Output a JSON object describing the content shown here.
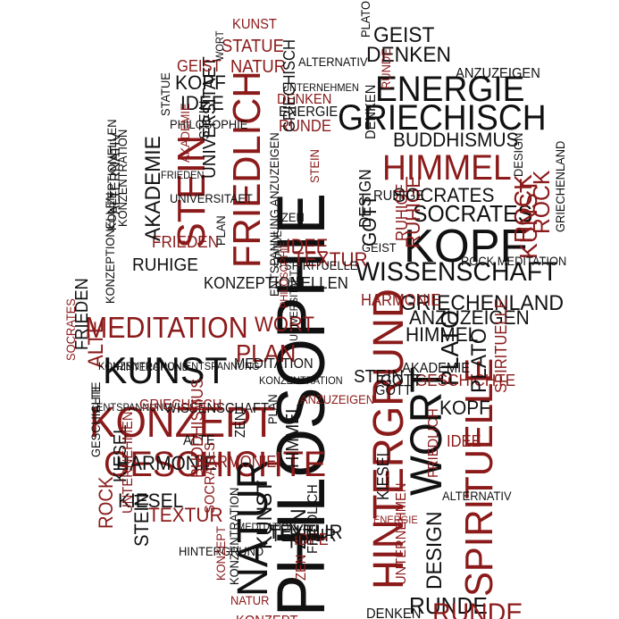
{
  "colors": {
    "black": "#111111",
    "red": "#8b1a1a"
  },
  "words": [
    {
      "text": "PHILOSOPHIE",
      "color": "black"
    },
    {
      "text": "HINTERGRUND",
      "color": "red"
    },
    {
      "text": "FRIEDLICH",
      "color": "red"
    },
    {
      "text": "KONZEPT",
      "color": "red"
    },
    {
      "text": "GESCHICHTE",
      "color": "red"
    },
    {
      "text": "MEDITATION",
      "color": "red"
    },
    {
      "text": "KUNST",
      "color": "black"
    },
    {
      "text": "STEIN",
      "color": "red"
    },
    {
      "text": "HIMMEL",
      "color": "red"
    },
    {
      "text": "KOPF",
      "color": "black"
    },
    {
      "text": "ENERGIE",
      "color": "black"
    },
    {
      "text": "GRIECHISCH",
      "color": "black"
    },
    {
      "text": "WISSENSCHAFT",
      "color": "black"
    },
    {
      "text": "SPIRITUELLE",
      "color": "red"
    },
    {
      "text": "WORT",
      "color": "black"
    },
    {
      "text": "NATUR",
      "color": "black"
    },
    {
      "text": "ANZUZEIGEN",
      "color": "black"
    },
    {
      "text": "GRIECHENLAND",
      "color": "black"
    },
    {
      "text": "HARMONIE",
      "color": "black"
    },
    {
      "text": "BUDDHISMUS",
      "color": "black"
    },
    {
      "text": "SOCRATES",
      "color": "black"
    },
    {
      "text": "DENKEN",
      "color": "black"
    },
    {
      "text": "GEIST",
      "color": "black"
    },
    {
      "text": "KONZEPTIONELLEN",
      "color": "black"
    },
    {
      "text": "RUHIGE",
      "color": "black"
    },
    {
      "text": "FRIEDEN",
      "color": "red"
    },
    {
      "text": "AKADEMIE",
      "color": "black"
    },
    {
      "text": "ALTERNATIV",
      "color": "black"
    },
    {
      "text": "UNIVERSITAET",
      "color": "black"
    },
    {
      "text": "KIESEL",
      "color": "black"
    },
    {
      "text": "TEXTUR",
      "color": "red"
    },
    {
      "text": "ROCK",
      "color": "red"
    },
    {
      "text": "PLAN",
      "color": "red"
    },
    {
      "text": "WORT",
      "color": "red"
    },
    {
      "text": "ALTE",
      "color": "red"
    },
    {
      "text": "KUNST",
      "color": "red"
    },
    {
      "text": "STATUE",
      "color": "red"
    },
    {
      "text": "NATUR",
      "color": "red"
    },
    {
      "text": "GEIST",
      "color": "red"
    },
    {
      "text": "KOPF",
      "color": "black"
    },
    {
      "text": "IDEE",
      "color": "black"
    },
    {
      "text": "PHILOSOPHIE",
      "color": "black"
    },
    {
      "text": "STATUE",
      "color": "black"
    },
    {
      "text": "STEIN",
      "color": "black"
    },
    {
      "text": "RUNDE",
      "color": "red"
    },
    {
      "text": "DESIGN",
      "color": "black"
    },
    {
      "text": "ZEN",
      "color": "black"
    },
    {
      "text": "UNTERNEHMEN",
      "color": "red"
    },
    {
      "text": "PLATO",
      "color": "black"
    },
    {
      "text": "RUNDE",
      "color": "black"
    },
    {
      "text": "PLATO",
      "color": "black"
    },
    {
      "text": "RUHIGE",
      "color": "red"
    },
    {
      "text": "ALTERNATIV",
      "color": "black"
    },
    {
      "text": "UNTERNEHMEN",
      "color": "black"
    },
    {
      "text": "DENKEN",
      "color": "red"
    },
    {
      "text": "ENERGIE",
      "color": "black"
    },
    {
      "text": "RUNDE",
      "color": "red"
    },
    {
      "text": "SOCRATES",
      "color": "black"
    },
    {
      "text": "DESIGN",
      "color": "black"
    },
    {
      "text": "GOTT",
      "color": "black"
    },
    {
      "text": "RUHIGE",
      "color": "red"
    },
    {
      "text": "KUNST",
      "color": "red"
    },
    {
      "text": "ROCK",
      "color": "red"
    },
    {
      "text": "GRIECHENLAND",
      "color": "black"
    },
    {
      "text": "ROCK MEDITATION",
      "color": "black"
    },
    {
      "text": "HARMONIE",
      "color": "red"
    },
    {
      "text": "HIMMEL",
      "color": "black"
    },
    {
      "text": "AKADEMIE",
      "color": "black"
    },
    {
      "text": "GESCHICHTE",
      "color": "red"
    },
    {
      "text": "STEIN",
      "color": "black"
    },
    {
      "text": "GOTT",
      "color": "black"
    },
    {
      "text": "KOPF",
      "color": "black"
    },
    {
      "text": "PLATO",
      "color": "black"
    },
    {
      "text": "IDEE",
      "color": "red"
    },
    {
      "text": "FRIEDLICH",
      "color": "red"
    },
    {
      "text": "DESIGN",
      "color": "black"
    },
    {
      "text": "RUNDE",
      "color": "red"
    },
    {
      "text": "DENKEN",
      "color": "black"
    },
    {
      "text": "KONZEPT",
      "color": "red"
    },
    {
      "text": "ZEN",
      "color": "red"
    },
    {
      "text": "HIMMEL",
      "color": "black"
    },
    {
      "text": "TEXTUR",
      "color": "black"
    },
    {
      "text": "ALTE",
      "color": "black"
    },
    {
      "text": "HARMONIE",
      "color": "red"
    },
    {
      "text": "KIESEL",
      "color": "black"
    },
    {
      "text": "STEIN",
      "color": "black"
    },
    {
      "text": "HINTERGRUND",
      "color": "black"
    },
    {
      "text": "ROCK",
      "color": "red"
    },
    {
      "text": "SOCRATES",
      "color": "red"
    },
    {
      "text": "ZEN",
      "color": "black"
    },
    {
      "text": "IDEE",
      "color": "red"
    },
    {
      "text": "FRIEDLICH",
      "color": "black"
    },
    {
      "text": "KIESEL",
      "color": "black"
    },
    {
      "text": "ENERGIE",
      "color": "red"
    },
    {
      "text": "TEXTUR",
      "color": "black"
    },
    {
      "text": "MEDITATION",
      "color": "black"
    },
    {
      "text": "KONZENTRATION",
      "color": "black"
    },
    {
      "text": "WISSENSCHAFT",
      "color": "black"
    },
    {
      "text": "ENTSPANNUNG",
      "color": "black"
    },
    {
      "text": "GRIECHISCH",
      "color": "red"
    },
    {
      "text": "ALTE",
      "color": "black"
    },
    {
      "text": "KONZENTRATION ENTSPANNUNG",
      "color": "black"
    },
    {
      "text": "MEDITATION",
      "color": "black"
    },
    {
      "text": "UNIVERSITAET",
      "color": "black"
    },
    {
      "text": "ENTSPANNUNG ANZUZEIGEN",
      "color": "black"
    },
    {
      "text": "TEXTUR",
      "color": "red"
    },
    {
      "text": "SPIRITUELLE",
      "color": "black"
    },
    {
      "text": "IDEE",
      "color": "red"
    },
    {
      "text": "GEIST",
      "color": "black"
    },
    {
      "text": "RUHIGE",
      "color": "black"
    },
    {
      "text": "STEIN",
      "color": "red"
    },
    {
      "text": "KONZEPTIONELLEN",
      "color": "black"
    },
    {
      "text": "ANZUZEIGEN",
      "color": "red"
    },
    {
      "text": "UNTERNEHMEN",
      "color": "red"
    },
    {
      "text": "FRIEDEN",
      "color": "black"
    },
    {
      "text": "GOTT",
      "color": "black"
    },
    {
      "text": "AKADEMIE",
      "color": "red"
    },
    {
      "text": "SPIRITUELLE",
      "color": "red"
    },
    {
      "text": "ALTERNATIV",
      "color": "black"
    },
    {
      "text": "BUDDHISMUS",
      "color": "red"
    },
    {
      "text": "SOCRATES",
      "color": "red"
    },
    {
      "text": "PHILOSOPHIE",
      "color": "red"
    },
    {
      "text": "KONZEPTIONELLEN",
      "color": "black"
    },
    {
      "text": "GESCHICHTE",
      "color": "black"
    },
    {
      "text": "HINTERGRUND",
      "color": "black"
    },
    {
      "text": "KONZENTRATION",
      "color": "black"
    },
    {
      "text": "UNIVERSITAET",
      "color": "black"
    },
    {
      "text": "FRIEDEN",
      "color": "black"
    },
    {
      "text": "GRIECHISCH",
      "color": "black"
    },
    {
      "text": "ZEN",
      "color": "black"
    },
    {
      "text": "DENKEN",
      "color": "black"
    },
    {
      "text": "PLAN",
      "color": "black"
    },
    {
      "text": "KUNST",
      "color": "black"
    },
    {
      "text": "NATUR",
      "color": "red"
    },
    {
      "text": "KONZEPT",
      "color": "red"
    },
    {
      "text": "KONZENTRATION",
      "color": "black"
    },
    {
      "text": "PLAN",
      "color": "black"
    },
    {
      "text": "WORT",
      "color": "black"
    },
    {
      "text": "STATUE",
      "color": "black"
    },
    {
      "text": "ANZUZEIGEN",
      "color": "black"
    },
    {
      "text": "GEIST",
      "color": "black"
    }
  ]
}
